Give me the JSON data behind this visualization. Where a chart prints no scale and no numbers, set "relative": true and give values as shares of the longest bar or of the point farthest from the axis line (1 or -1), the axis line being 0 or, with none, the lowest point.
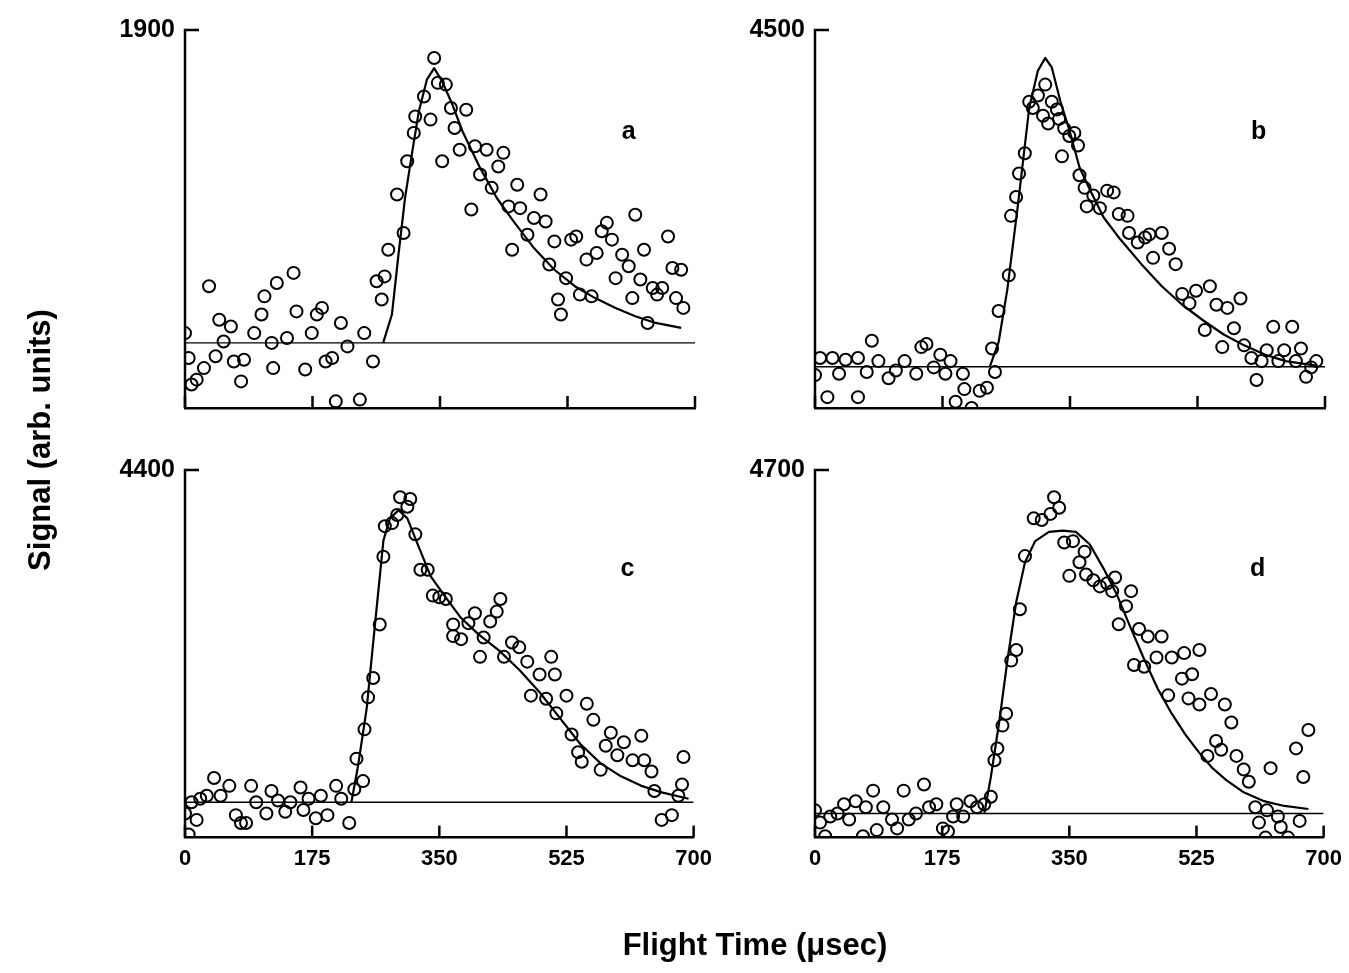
{
  "chart_data": [
    {
      "type": "scatter",
      "relative": true,
      "ylabel": "Signal (arb. units)",
      "xlim": [
        0,
        700
      ],
      "xticks": [
        0,
        175,
        350,
        525,
        700
      ],
      "tick_labels": false,
      "annotations": [
        "1900",
        "a"
      ],
      "series": [
        {
          "marker": "circle",
          "color": "#000000",
          "x": [
            0,
            5,
            9,
            16,
            26,
            33,
            42,
            47,
            53,
            63,
            67,
            77,
            81,
            95,
            105,
            109,
            119,
            121,
            126,
            140,
            149,
            153,
            165,
            174,
            181,
            188,
            193,
            202,
            207,
            214,
            223,
            240,
            246,
            258,
            263,
            270,
            274,
            279,
            291,
            300,
            305,
            314,
            316,
            328,
            337,
            342,
            347,
            353,
            358,
            365,
            370,
            377,
            386,
            393,
            398,
            405,
            414,
            421,
            430,
            437,
            444,
            449,
            456,
            460,
            470,
            479,
            488,
            495,
            500,
            507,
            512,
            516,
            523,
            530,
            537,
            542,
            551,
            558,
            565,
            572,
            579,
            586,
            591,
            600,
            609,
            614,
            618,
            625,
            630,
            635,
            642,
            648,
            655,
            663,
            669,
            674,
            681,
            684
          ],
          "values": [
            0.214,
            0.143,
            0.067,
            0.081,
            0.114,
            0.348,
            0.148,
            0.252,
            0.19,
            0.233,
            0.133,
            0.076,
            0.138,
            0.214,
            0.267,
            0.319,
            0.186,
            0.114,
            0.357,
            0.2,
            0.386,
            0.276,
            0.11,
            0.214,
            0.267,
            0.286,
            0.133,
            0.143,
            0.019,
            0.243,
            0.176,
            0.024,
            0.214,
            0.133,
            0.362,
            0.31,
            0.376,
            0.452,
            0.61,
            0.5,
            0.705,
            0.786,
            0.833,
            0.89,
            0.824,
            1,
            0.929,
            0.705,
            0.924,
            0.857,
            0.8,
            0.738,
            0.852,
            0.567,
            0.748,
            0.667,
            0.738,
            0.629,
            0.69,
            0.729,
            0.576,
            0.452,
            0.638,
            0.571,
            0.495,
            0.543,
            0.61,
            0.533,
            0.41,
            0.476,
            0.31,
            0.267,
            0.371,
            0.481,
            0.49,
            0.324,
            0.424,
            0.319,
            0.443,
            0.505,
            0.529,
            0.481,
            0.371,
            0.438,
            0.405,
            0.314,
            0.552,
            0.367,
            0.452,
            0.243,
            0.343,
            0.324,
            0.343,
            0.49,
            0.4,
            0.314,
            0.395,
            0.286
          ]
        },
        {
          "type": "line",
          "color": "#000000",
          "x": [
            272,
            284,
            293,
            302,
            312,
            321,
            332,
            342,
            353,
            367,
            381,
            405,
            428,
            451,
            479,
            507,
            535,
            563,
            591,
            618,
            646,
            681
          ],
          "values": [
            0.186,
            0.267,
            0.438,
            0.6,
            0.733,
            0.848,
            0.938,
            0.971,
            0.933,
            0.867,
            0.79,
            0.686,
            0.6,
            0.533,
            0.457,
            0.395,
            0.348,
            0.314,
            0.286,
            0.262,
            0.243,
            0.229
          ]
        },
        {
          "type": "line",
          "color": "#000000",
          "x": [
            0,
            700
          ],
          "values": [
            0.186,
            0.186
          ]
        }
      ]
    },
    {
      "type": "scatter",
      "relative": true,
      "xlim": [
        0,
        700
      ],
      "xticks": [
        0,
        175,
        350,
        525,
        700
      ],
      "tick_labels": false,
      "annotations": [
        "4500",
        "b"
      ],
      "series": [
        {
          "marker": "circle",
          "color": "#000000",
          "x": [
            0,
            7,
            17,
            24,
            33,
            42,
            59,
            59,
            71,
            78,
            87,
            101,
            111,
            123,
            139,
            146,
            153,
            163,
            172,
            179,
            186,
            193,
            203,
            205,
            215,
            226,
            236,
            243,
            247,
            252,
            266,
            269,
            276,
            280,
            288,
            294,
            299,
            306,
            313,
            316,
            320,
            325,
            332,
            335,
            342,
            349,
            356,
            339,
            361,
            363,
            370,
            373,
            382,
            391,
            401,
            410,
            417,
            429,
            431,
            443,
            453,
            459,
            464,
            476,
            486,
            495,
            504,
            514,
            523,
            535,
            542,
            551,
            559,
            566,
            575,
            584,
            589,
            599,
            606,
            613,
            620,
            629,
            636,
            644,
            655,
            660,
            667,
            674,
            681,
            688
          ],
          "values": [
            0.094,
            0.143,
            0.031,
            0.143,
            0.098,
            0.138,
            0.031,
            0.143,
            0.103,
            0.192,
            0.134,
            0.085,
            0.107,
            0.134,
            0.098,
            0.174,
            0.183,
            0.116,
            0.152,
            0.098,
            0.134,
            0.018,
            0.098,
            0.054,
            0,
            0.049,
            0.058,
            0.17,
            0.103,
            0.277,
            0.379,
            0.549,
            0.603,
            0.67,
            0.728,
            0.875,
            0.857,
            0.893,
            0.835,
            0.924,
            0.813,
            0.875,
            0.853,
            0.826,
            0.799,
            0.777,
            0.786,
            0.719,
            0.75,
            0.665,
            0.629,
            0.576,
            0.607,
            0.571,
            0.621,
            0.616,
            0.554,
            0.549,
            0.5,
            0.473,
            0.487,
            0.496,
            0.429,
            0.5,
            0.455,
            0.411,
            0.326,
            0.299,
            0.335,
            0.223,
            0.348,
            0.295,
            0.174,
            0.286,
            0.228,
            0.313,
            0.179,
            0.143,
            0.08,
            0.134,
            0.165,
            0.232,
            0.134,
            0.165,
            0.232,
            0.134,
            0.17,
            0.089,
            0.116,
            0.134
          ]
        },
        {
          "type": "line",
          "color": "#000000",
          "x": [
            240,
            252,
            264,
            278,
            294,
            306,
            316,
            325,
            337,
            349,
            363,
            377,
            396,
            419,
            448,
            476,
            504,
            533,
            561,
            589,
            618,
            646,
            688
          ],
          "values": [
            0.118,
            0.188,
            0.339,
            0.571,
            0.857,
            0.964,
            1,
            0.973,
            0.875,
            0.795,
            0.688,
            0.625,
            0.545,
            0.482,
            0.411,
            0.348,
            0.295,
            0.25,
            0.21,
            0.179,
            0.152,
            0.134,
            0.121
          ]
        },
        {
          "type": "line",
          "color": "#000000",
          "x": [
            0,
            700
          ],
          "values": [
            0.118,
            0.118
          ]
        }
      ]
    },
    {
      "type": "scatter",
      "relative": true,
      "xlabel": "Flight Time (μsec)",
      "xlim": [
        0,
        700
      ],
      "xticks": [
        0,
        175,
        350,
        525,
        700
      ],
      "tick_labels": "x",
      "annotations": [
        "4400",
        "c"
      ],
      "series": [
        {
          "marker": "circle",
          "color": "#000000",
          "x": [
            0,
            5,
            9,
            16,
            21,
            30,
            40,
            49,
            61,
            70,
            77,
            84,
            91,
            98,
            112,
            119,
            128,
            138,
            145,
            159,
            163,
            170,
            180,
            187,
            196,
            208,
            215,
            226,
            233,
            236,
            245,
            247,
            252,
            259,
            268,
            273,
            275,
            285,
            292,
            296,
            310,
            306,
            317,
            324,
            334,
            341,
            350,
            359,
            369,
            369,
            380,
            390,
            399,
            406,
            411,
            420,
            434,
            429,
            439,
            450,
            460,
            471,
            476,
            488,
            497,
            504,
            509,
            511,
            525,
            532,
            541,
            546,
            553,
            562,
            572,
            579,
            586,
            595,
            604,
            616,
            628,
            632,
            642,
            646,
            656,
            670,
            679,
            684,
            686
          ],
          "values": [
            0.071,
            0.009,
            0.104,
            0.052,
            0.114,
            0.123,
            0.175,
            0.123,
            0.152,
            0.066,
            0.043,
            0.043,
            0.152,
            0.104,
            0.071,
            0.137,
            0.109,
            0.076,
            0.104,
            0.147,
            0.081,
            0.114,
            0.057,
            0.123,
            0.066,
            0.152,
            0.114,
            0.043,
            0.142,
            0.232,
            0.166,
            0.318,
            0.412,
            0.469,
            0.626,
            0.825,
            0.915,
            0.924,
            0.948,
            1,
            0.995,
            0.972,
            0.891,
            0.787,
            0.787,
            0.711,
            0.706,
            0.701,
            0.626,
            0.592,
            0.583,
            0.63,
            0.659,
            0.531,
            0.588,
            0.635,
            0.701,
            0.664,
            0.531,
            0.573,
            0.559,
            0.517,
            0.417,
            0.479,
            0.408,
            0.531,
            0.479,
            0.365,
            0.417,
            0.303,
            0.251,
            0.223,
            0.393,
            0.346,
            0.199,
            0.27,
            0.308,
            0.242,
            0.28,
            0.227,
            0.299,
            0.227,
            0.194,
            0.137,
            0.052,
            0.066,
            0.123,
            0.156,
            0.237
          ]
        },
        {
          "type": "line",
          "color": "#000000",
          "x": [
            229,
            238,
            250,
            261,
            273,
            282,
            294,
            306,
            320,
            338,
            357,
            380,
            404,
            432,
            460,
            488,
            516,
            544,
            572,
            600,
            628,
            656,
            693
          ],
          "values": [
            0.104,
            0.209,
            0.379,
            0.616,
            0.872,
            0.938,
            0.962,
            0.938,
            0.863,
            0.768,
            0.711,
            0.645,
            0.597,
            0.55,
            0.493,
            0.427,
            0.351,
            0.275,
            0.218,
            0.18,
            0.152,
            0.133,
            0.114
          ]
        },
        {
          "type": "line",
          "color": "#000000",
          "x": [
            0,
            700
          ],
          "values": [
            0.104,
            0.104
          ]
        }
      ]
    },
    {
      "type": "scatter",
      "relative": true,
      "xlim": [
        0,
        700
      ],
      "xticks": [
        0,
        175,
        350,
        525,
        700
      ],
      "tick_labels": "x",
      "annotations": [
        "4700",
        "d"
      ],
      "series": [
        {
          "marker": "circle",
          "color": "#000000",
          "x": [
            0,
            7,
            14,
            21,
            31,
            40,
            47,
            56,
            66,
            70,
            80,
            85,
            94,
            106,
            113,
            122,
            129,
            139,
            150,
            157,
            167,
            176,
            183,
            190,
            195,
            204,
            214,
            223,
            233,
            242,
            247,
            251,
            258,
            263,
            270,
            277,
            282,
            289,
            301,
            312,
            324,
            329,
            336,
            343,
            350,
            355,
            364,
            371,
            373,
            383,
            392,
            402,
            409,
            413,
            418,
            428,
            435,
            439,
            446,
            453,
            458,
            470,
            477,
            486,
            491,
            505,
            508,
            514,
            519,
            529,
            529,
            540,
            545,
            552,
            559,
            564,
            573,
            580,
            590,
            597,
            606,
            611,
            620,
            622,
            627,
            637,
            641,
            651,
            662,
            667,
            672,
            679
          ],
          "values": [
            0.08,
            0.044,
            0.004,
            0.062,
            0.071,
            0.098,
            0.053,
            0.107,
            0.004,
            0.089,
            0.138,
            0.022,
            0.089,
            0.053,
            0.027,
            0.138,
            0.053,
            0.071,
            0.156,
            0.089,
            0.098,
            0.027,
            0.018,
            0.062,
            0.098,
            0.062,
            0.107,
            0.089,
            0.098,
            0.12,
            0.227,
            0.262,
            0.329,
            0.364,
            0.52,
            0.551,
            0.671,
            0.827,
            0.938,
            0.933,
            0.951,
            1,
            0.969,
            0.867,
            0.769,
            0.871,
            0.809,
            0.84,
            0.773,
            0.756,
            0.738,
            0.747,
            0.724,
            0.764,
            0.627,
            0.68,
            0.724,
            0.507,
            0.613,
            0.502,
            0.591,
            0.529,
            0.591,
            0.418,
            0.529,
            0.467,
            0.542,
            0.409,
            0.48,
            0.551,
            0.391,
            0.24,
            0.422,
            0.284,
            0.258,
            0.391,
            0.338,
            0.24,
            0.2,
            0.164,
            0.089,
            0.044,
            0,
            0.08,
            0.204,
            0.062,
            0.031,
            0,
            0.262,
            0.049,
            0.178,
            0.316
          ]
        },
        {
          "type": "line",
          "color": "#000000",
          "x": [
            233,
            242,
            254,
            265,
            277,
            289,
            303,
            322,
            341,
            359,
            378,
            397,
            416,
            435,
            453,
            472,
            491,
            510,
            529,
            547,
            566,
            590,
            618,
            646,
            679
          ],
          "values": [
            0.071,
            0.178,
            0.347,
            0.524,
            0.693,
            0.809,
            0.871,
            0.898,
            0.902,
            0.898,
            0.862,
            0.791,
            0.711,
            0.613,
            0.524,
            0.436,
            0.364,
            0.302,
            0.249,
            0.204,
            0.169,
            0.133,
            0.107,
            0.093,
            0.084
          ]
        },
        {
          "type": "line",
          "color": "#000000",
          "x": [
            0,
            700
          ],
          "values": [
            0.071,
            0.071
          ]
        }
      ]
    }
  ]
}
